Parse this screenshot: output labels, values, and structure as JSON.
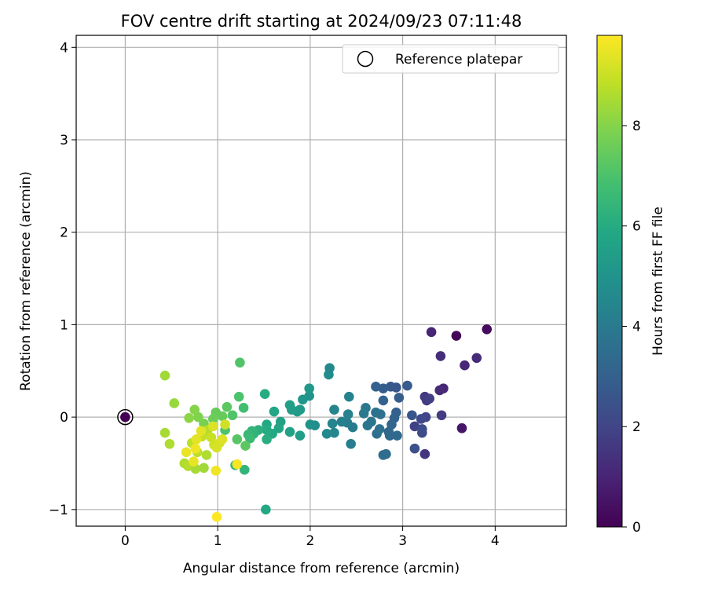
{
  "chart_data": {
    "type": "scatter",
    "title": "FOV centre drift starting at 2024/09/23 07:11:48",
    "xlabel": "Angular distance from reference (arcmin)",
    "ylabel": "Rotation from reference (arcmin)",
    "xlim": [
      -0.53,
      4.77
    ],
    "ylim": [
      -1.18,
      4.13
    ],
    "xticks": [
      0,
      1,
      2,
      3,
      4
    ],
    "yticks": [
      -1,
      0,
      1,
      2,
      3,
      4
    ],
    "grid": true,
    "legend": {
      "position": "top-right",
      "entries": [
        "Reference platepar"
      ]
    },
    "reference_point": {
      "x": 0,
      "y": 0,
      "label": "Reference platepar"
    },
    "colorbar": {
      "label": "Hours from first FF file",
      "colormap": "viridis",
      "range": [
        0,
        9.8
      ],
      "ticks": [
        0,
        2,
        4,
        6,
        8
      ]
    },
    "series": [
      {
        "points": [
          {
            "x": 0.0,
            "y": 0.0,
            "c": 0.0
          },
          {
            "x": 3.58,
            "y": 0.88,
            "c": 0.1
          },
          {
            "x": 3.91,
            "y": 0.95,
            "c": 0.3
          },
          {
            "x": 3.31,
            "y": 0.92,
            "c": 1.0
          },
          {
            "x": 3.67,
            "y": 0.56,
            "c": 1.1
          },
          {
            "x": 3.8,
            "y": 0.64,
            "c": 1.2
          },
          {
            "x": 3.64,
            "y": -0.12,
            "c": 0.6
          },
          {
            "x": 3.41,
            "y": 0.66,
            "c": 1.3
          },
          {
            "x": 3.44,
            "y": 0.31,
            "c": 1.0
          },
          {
            "x": 3.4,
            "y": 0.29,
            "c": 1.2
          },
          {
            "x": 3.24,
            "y": 0.22,
            "c": 1.6
          },
          {
            "x": 3.26,
            "y": 0.18,
            "c": 1.7
          },
          {
            "x": 3.29,
            "y": 0.2,
            "c": 1.8
          },
          {
            "x": 3.24,
            "y": -0.4,
            "c": 1.5
          },
          {
            "x": 3.42,
            "y": 0.02,
            "c": 1.7
          },
          {
            "x": 3.25,
            "y": 0.0,
            "c": 2.0
          },
          {
            "x": 3.2,
            "y": -0.02,
            "c": 2.1
          },
          {
            "x": 3.13,
            "y": -0.1,
            "c": 1.9
          },
          {
            "x": 3.21,
            "y": -0.17,
            "c": 2.2
          },
          {
            "x": 3.21,
            "y": -0.13,
            "c": 2.3
          },
          {
            "x": 3.13,
            "y": -0.34,
            "c": 2.4
          },
          {
            "x": 3.1,
            "y": 0.02,
            "c": 2.6
          },
          {
            "x": 3.05,
            "y": 0.34,
            "c": 2.8
          },
          {
            "x": 2.93,
            "y": 0.32,
            "c": 2.6
          },
          {
            "x": 2.87,
            "y": 0.33,
            "c": 2.7
          },
          {
            "x": 2.79,
            "y": 0.31,
            "c": 2.9
          },
          {
            "x": 2.71,
            "y": 0.33,
            "c": 3.0
          },
          {
            "x": 2.79,
            "y": 0.18,
            "c": 3.1
          },
          {
            "x": 2.96,
            "y": 0.21,
            "c": 2.9
          },
          {
            "x": 2.93,
            "y": 0.05,
            "c": 3.0
          },
          {
            "x": 2.91,
            "y": -0.01,
            "c": 3.1
          },
          {
            "x": 2.88,
            "y": -0.08,
            "c": 3.2
          },
          {
            "x": 2.85,
            "y": -0.16,
            "c": 3.2
          },
          {
            "x": 2.86,
            "y": -0.2,
            "c": 3.3
          },
          {
            "x": 2.94,
            "y": -0.2,
            "c": 3.3
          },
          {
            "x": 2.82,
            "y": -0.4,
            "c": 3.4
          },
          {
            "x": 2.79,
            "y": -0.41,
            "c": 3.5
          },
          {
            "x": 2.72,
            "y": -0.18,
            "c": 3.5
          },
          {
            "x": 2.75,
            "y": -0.13,
            "c": 3.6
          },
          {
            "x": 2.76,
            "y": 0.03,
            "c": 3.6
          },
          {
            "x": 2.71,
            "y": 0.05,
            "c": 3.7
          },
          {
            "x": 2.66,
            "y": -0.05,
            "c": 3.8
          },
          {
            "x": 2.62,
            "y": -0.09,
            "c": 3.8
          },
          {
            "x": 2.6,
            "y": 0.1,
            "c": 3.9
          },
          {
            "x": 2.58,
            "y": 0.04,
            "c": 4.0
          },
          {
            "x": 2.46,
            "y": -0.11,
            "c": 4.0
          },
          {
            "x": 2.44,
            "y": -0.29,
            "c": 4.1
          },
          {
            "x": 2.4,
            "y": -0.06,
            "c": 4.2
          },
          {
            "x": 2.34,
            "y": -0.05,
            "c": 4.2
          },
          {
            "x": 2.41,
            "y": 0.03,
            "c": 4.3
          },
          {
            "x": 2.42,
            "y": 0.22,
            "c": 4.3
          },
          {
            "x": 2.26,
            "y": 0.08,
            "c": 4.4
          },
          {
            "x": 2.24,
            "y": -0.07,
            "c": 4.4
          },
          {
            "x": 2.26,
            "y": -0.17,
            "c": 4.5
          },
          {
            "x": 2.18,
            "y": -0.18,
            "c": 4.6
          },
          {
            "x": 2.2,
            "y": 0.46,
            "c": 4.7
          },
          {
            "x": 2.21,
            "y": 0.53,
            "c": 4.6
          },
          {
            "x": 2.05,
            "y": -0.09,
            "c": 4.8
          },
          {
            "x": 2.0,
            "y": -0.08,
            "c": 4.9
          },
          {
            "x": 1.99,
            "y": 0.23,
            "c": 5.0
          },
          {
            "x": 1.92,
            "y": 0.19,
            "c": 5.1
          },
          {
            "x": 1.99,
            "y": 0.31,
            "c": 5.2
          },
          {
            "x": 1.89,
            "y": 0.08,
            "c": 5.3
          },
          {
            "x": 1.86,
            "y": 0.06,
            "c": 5.3
          },
          {
            "x": 1.8,
            "y": 0.08,
            "c": 5.4
          },
          {
            "x": 1.78,
            "y": 0.13,
            "c": 5.5
          },
          {
            "x": 1.89,
            "y": -0.2,
            "c": 5.4
          },
          {
            "x": 1.78,
            "y": -0.16,
            "c": 5.6
          },
          {
            "x": 1.68,
            "y": -0.05,
            "c": 5.6
          },
          {
            "x": 1.66,
            "y": -0.12,
            "c": 5.7
          },
          {
            "x": 1.61,
            "y": 0.06,
            "c": 5.8
          },
          {
            "x": 1.59,
            "y": -0.18,
            "c": 5.9
          },
          {
            "x": 1.53,
            "y": -0.08,
            "c": 5.9
          },
          {
            "x": 1.53,
            "y": -0.14,
            "c": 6.0
          },
          {
            "x": 1.53,
            "y": -0.24,
            "c": 6.1
          },
          {
            "x": 1.51,
            "y": 0.25,
            "c": 6.0
          },
          {
            "x": 1.52,
            "y": -1.0,
            "c": 5.9
          },
          {
            "x": 1.44,
            "y": -0.14,
            "c": 6.2
          },
          {
            "x": 1.39,
            "y": -0.18,
            "c": 6.3
          },
          {
            "x": 1.37,
            "y": -0.15,
            "c": 6.4
          },
          {
            "x": 1.33,
            "y": -0.19,
            "c": 6.5
          },
          {
            "x": 1.35,
            "y": -0.23,
            "c": 6.6
          },
          {
            "x": 1.29,
            "y": -0.57,
            "c": 6.4
          },
          {
            "x": 1.19,
            "y": -0.52,
            "c": 6.5
          },
          {
            "x": 1.28,
            "y": 0.1,
            "c": 6.8
          },
          {
            "x": 1.23,
            "y": 0.22,
            "c": 7.0
          },
          {
            "x": 1.24,
            "y": 0.59,
            "c": 7.1
          },
          {
            "x": 1.3,
            "y": -0.31,
            "c": 7.3
          },
          {
            "x": 1.21,
            "y": -0.24,
            "c": 7.2
          },
          {
            "x": 1.16,
            "y": 0.02,
            "c": 7.1
          },
          {
            "x": 1.1,
            "y": 0.11,
            "c": 7.3
          },
          {
            "x": 1.08,
            "y": -0.14,
            "c": 7.0
          },
          {
            "x": 1.05,
            "y": 0.01,
            "c": 7.5
          },
          {
            "x": 0.98,
            "y": 0.05,
            "c": 7.5
          },
          {
            "x": 0.95,
            "y": -0.02,
            "c": 7.6
          },
          {
            "x": 0.85,
            "y": -0.07,
            "c": 7.8
          },
          {
            "x": 0.79,
            "y": 0.0,
            "c": 7.9
          },
          {
            "x": 0.75,
            "y": 0.08,
            "c": 8.0
          },
          {
            "x": 0.69,
            "y": -0.01,
            "c": 8.1
          },
          {
            "x": 0.53,
            "y": 0.15,
            "c": 8.3
          },
          {
            "x": 0.43,
            "y": 0.45,
            "c": 8.4
          },
          {
            "x": 0.43,
            "y": -0.17,
            "c": 8.5
          },
          {
            "x": 0.48,
            "y": -0.29,
            "c": 8.6
          },
          {
            "x": 0.64,
            "y": -0.5,
            "c": 8.6
          },
          {
            "x": 0.68,
            "y": -0.53,
            "c": 8.7
          },
          {
            "x": 0.76,
            "y": -0.56,
            "c": 8.5
          },
          {
            "x": 0.85,
            "y": -0.55,
            "c": 8.4
          },
          {
            "x": 0.88,
            "y": -0.41,
            "c": 8.6
          },
          {
            "x": 0.78,
            "y": -0.38,
            "c": 8.8
          },
          {
            "x": 0.72,
            "y": -0.28,
            "c": 8.8
          },
          {
            "x": 0.83,
            "y": -0.21,
            "c": 8.9
          },
          {
            "x": 0.89,
            "y": -0.14,
            "c": 8.7
          },
          {
            "x": 0.93,
            "y": -0.22,
            "c": 9.0
          },
          {
            "x": 0.96,
            "y": -0.3,
            "c": 9.1
          },
          {
            "x": 0.99,
            "y": -0.33,
            "c": 9.2
          },
          {
            "x": 1.02,
            "y": -0.28,
            "c": 9.2
          },
          {
            "x": 1.05,
            "y": -0.24,
            "c": 9.3
          },
          {
            "x": 1.08,
            "y": -0.08,
            "c": 9.1
          },
          {
            "x": 0.95,
            "y": -0.1,
            "c": 9.3
          },
          {
            "x": 0.82,
            "y": -0.15,
            "c": 9.4
          },
          {
            "x": 0.77,
            "y": -0.24,
            "c": 9.4
          },
          {
            "x": 0.74,
            "y": -0.48,
            "c": 9.5
          },
          {
            "x": 0.66,
            "y": -0.38,
            "c": 9.5
          },
          {
            "x": 0.76,
            "y": -0.34,
            "c": 9.6
          },
          {
            "x": 0.98,
            "y": -0.58,
            "c": 9.6
          },
          {
            "x": 1.21,
            "y": -0.51,
            "c": 9.7
          },
          {
            "x": 0.99,
            "y": -1.08,
            "c": 9.8
          }
        ]
      }
    ]
  }
}
